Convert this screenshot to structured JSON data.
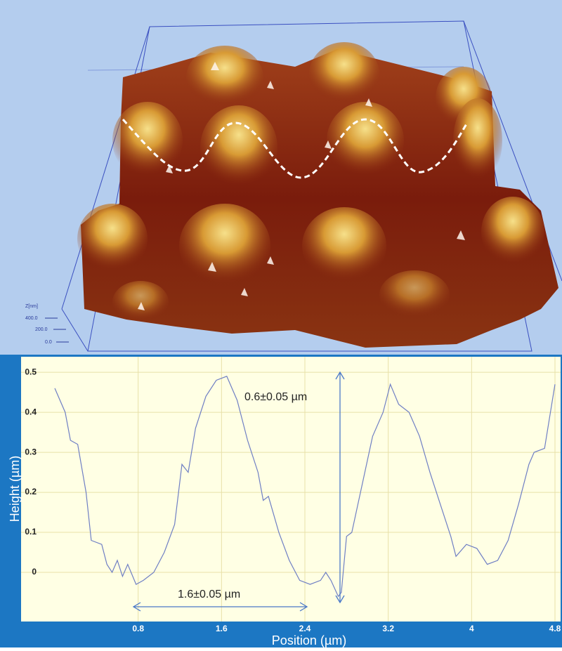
{
  "afm_image": {
    "z_axis_label": "Z[nm]",
    "z_ticks": [
      "400.0",
      "200.0",
      "0.0"
    ]
  },
  "chart_data": {
    "type": "line",
    "x_label": "Position (µm)",
    "y_label": "Height (µm)",
    "annotations": [
      "0.6±0.05 µm",
      "1.6±0.05 µm"
    ],
    "x": [
      0,
      0.1,
      0.15,
      0.22,
      0.3,
      0.35,
      0.45,
      0.5,
      0.55,
      0.6,
      0.65,
      0.7,
      0.78,
      0.85,
      0.95,
      1.05,
      1.15,
      1.22,
      1.28,
      1.35,
      1.45,
      1.55,
      1.65,
      1.75,
      1.85,
      1.95,
      2.0,
      2.05,
      2.15,
      2.25,
      2.35,
      2.45,
      2.55,
      2.6,
      2.65,
      2.72,
      2.75,
      2.8,
      2.85,
      2.95,
      3.05,
      3.15,
      3.22,
      3.3,
      3.4,
      3.5,
      3.6,
      3.7,
      3.8,
      3.85,
      3.95,
      4.05,
      4.15,
      4.25,
      4.35,
      4.45,
      4.55,
      4.6,
      4.7,
      4.8
    ],
    "series": [
      {
        "color": "#6f7fc4",
        "values": [
          0.46,
          0.4,
          0.33,
          0.32,
          0.2,
          0.08,
          0.07,
          0.02,
          0.0,
          0.03,
          -0.01,
          0.02,
          -0.03,
          -0.02,
          0.0,
          0.05,
          0.12,
          0.27,
          0.25,
          0.36,
          0.44,
          0.48,
          0.49,
          0.43,
          0.33,
          0.25,
          0.18,
          0.19,
          0.1,
          0.03,
          -0.02,
          -0.03,
          -0.02,
          0.0,
          -0.02,
          -0.06,
          -0.05,
          0.09,
          0.1,
          0.22,
          0.34,
          0.4,
          0.47,
          0.42,
          0.4,
          0.34,
          0.25,
          0.17,
          0.09,
          0.04,
          0.07,
          0.06,
          0.02,
          0.03,
          0.08,
          0.17,
          0.27,
          0.3,
          0.31,
          0.47
        ]
      }
    ],
    "xlim": [
      0,
      4.8
    ],
    "ylim": [
      -0.121,
      0.516
    ],
    "xticks": [
      0.8,
      1.6,
      2.4,
      3.2,
      4.0,
      4.8
    ],
    "yticks": [
      0.5,
      0.4,
      0.3,
      0.2,
      0.1,
      0
    ],
    "grid": true
  }
}
